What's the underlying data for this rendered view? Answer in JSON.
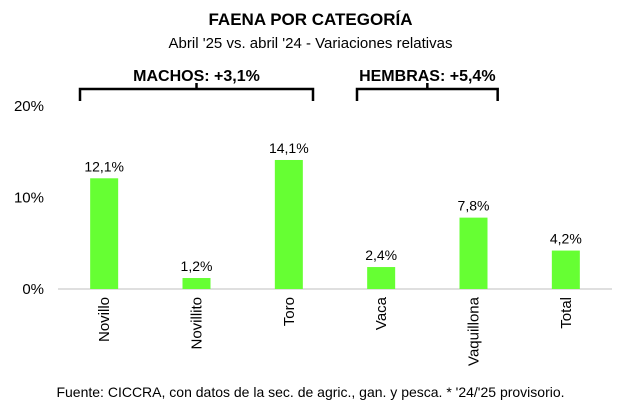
{
  "title": "FAENA POR CATEGORÍA",
  "subtitle": "Abril '25 vs. abril '24 - Variaciones relativas",
  "source": "Fuente: CICCRA, con datos de la sec. de agric., gan. y pesca. * '24/'25 provisorio.",
  "groups": [
    {
      "label": "MACHOS: +3,1%",
      "from": "Novillo",
      "to": "Toro"
    },
    {
      "label": "HEMBRAS: +5,4%",
      "from": "Vaca",
      "to": "Vaquillona"
    }
  ],
  "colors": {
    "bar": "#66ff33",
    "axis": "#bfbfbf",
    "text": "#000000"
  },
  "chart_data": {
    "type": "bar",
    "categories": [
      "Novillo",
      "Novillito",
      "Toro",
      "Vaca",
      "Vaquillona",
      "Total"
    ],
    "values": [
      12.1,
      1.2,
      14.1,
      2.4,
      7.8,
      4.2
    ],
    "data_labels": [
      "12,1%",
      "1,2%",
      "14,1%",
      "2,4%",
      "7,8%",
      "4,2%"
    ],
    "ylim": [
      0,
      20
    ],
    "yticks": [
      "0%",
      "10%",
      "20%"
    ],
    "ytick_values": [
      0,
      10,
      20
    ],
    "grid": false,
    "legend": "none"
  }
}
